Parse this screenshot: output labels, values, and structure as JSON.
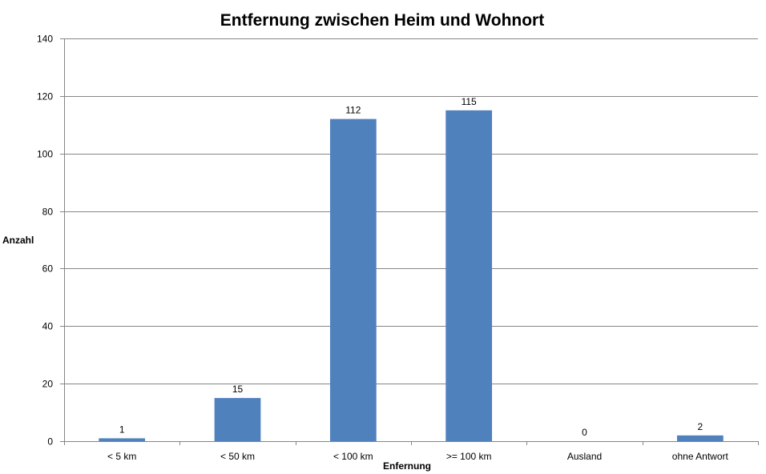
{
  "chart_data": {
    "type": "bar",
    "title": "Entfernung zwischen Heim und Wohnort",
    "xlabel": "Enfernung",
    "ylabel": "Anzahl",
    "categories": [
      "< 5 km",
      "< 50 km",
      "< 100 km",
      ">= 100 km",
      "Ausland",
      "ohne Antwort"
    ],
    "values": [
      1,
      15,
      112,
      115,
      0,
      2
    ],
    "data_labels": [
      "1",
      "15",
      "112",
      "115",
      "0",
      "2"
    ],
    "ylim": [
      0,
      140
    ],
    "yticks": [
      "0",
      "20",
      "40",
      "60",
      "80",
      "100",
      "120",
      "140"
    ],
    "grid": true,
    "legend": "none",
    "bar_color": "#4F81BD",
    "grid_color": "#868686"
  }
}
